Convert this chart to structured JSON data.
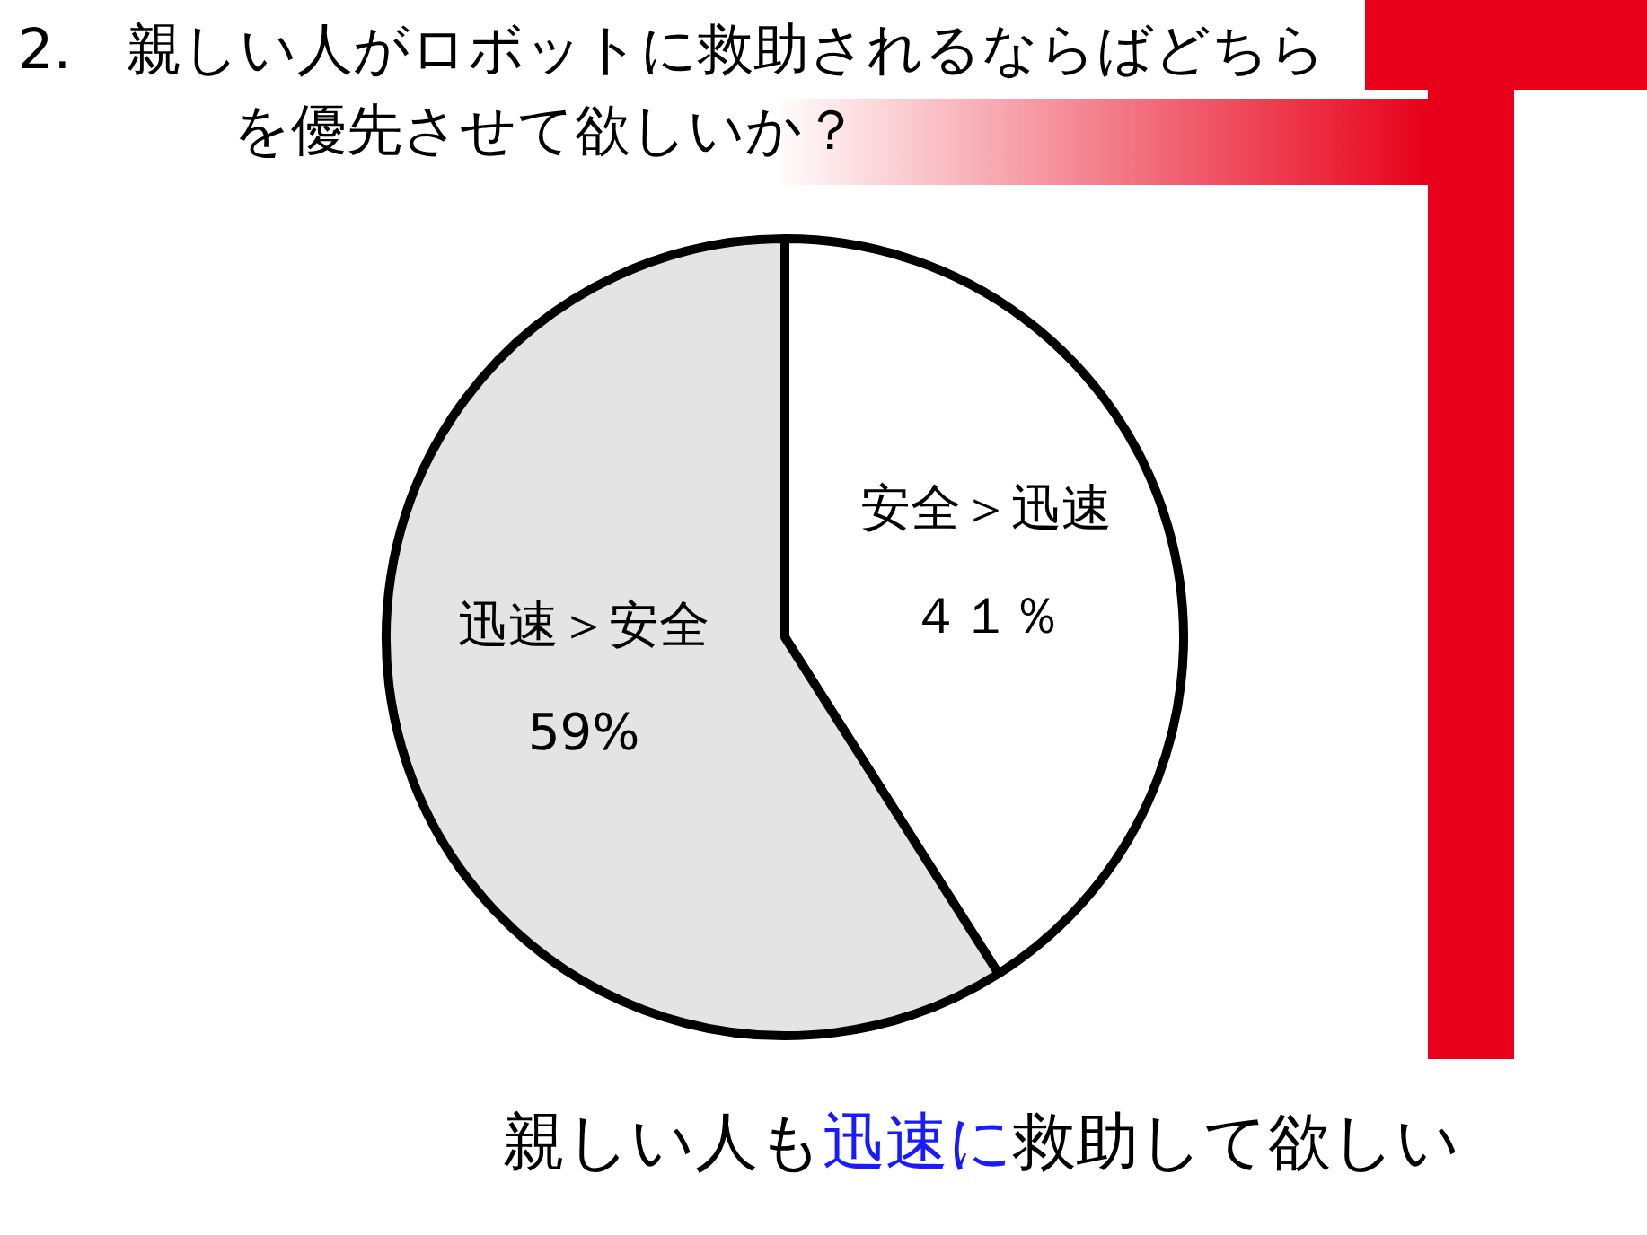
{
  "chart_data": {
    "type": "pie",
    "title": "2.　親しい人がロボットに救助されるならばどちらを優先させて欲しいか？",
    "categories": [
      "安全＞迅速",
      "迅速＞安全"
    ],
    "values": [
      41,
      59
    ],
    "colors": [
      "#ffffff",
      "#e4e4e4"
    ],
    "value_labels": [
      "４１％",
      "59%"
    ],
    "annotations": [
      "親しい人も",
      "迅速に",
      "救助して欲しい"
    ]
  }
}
